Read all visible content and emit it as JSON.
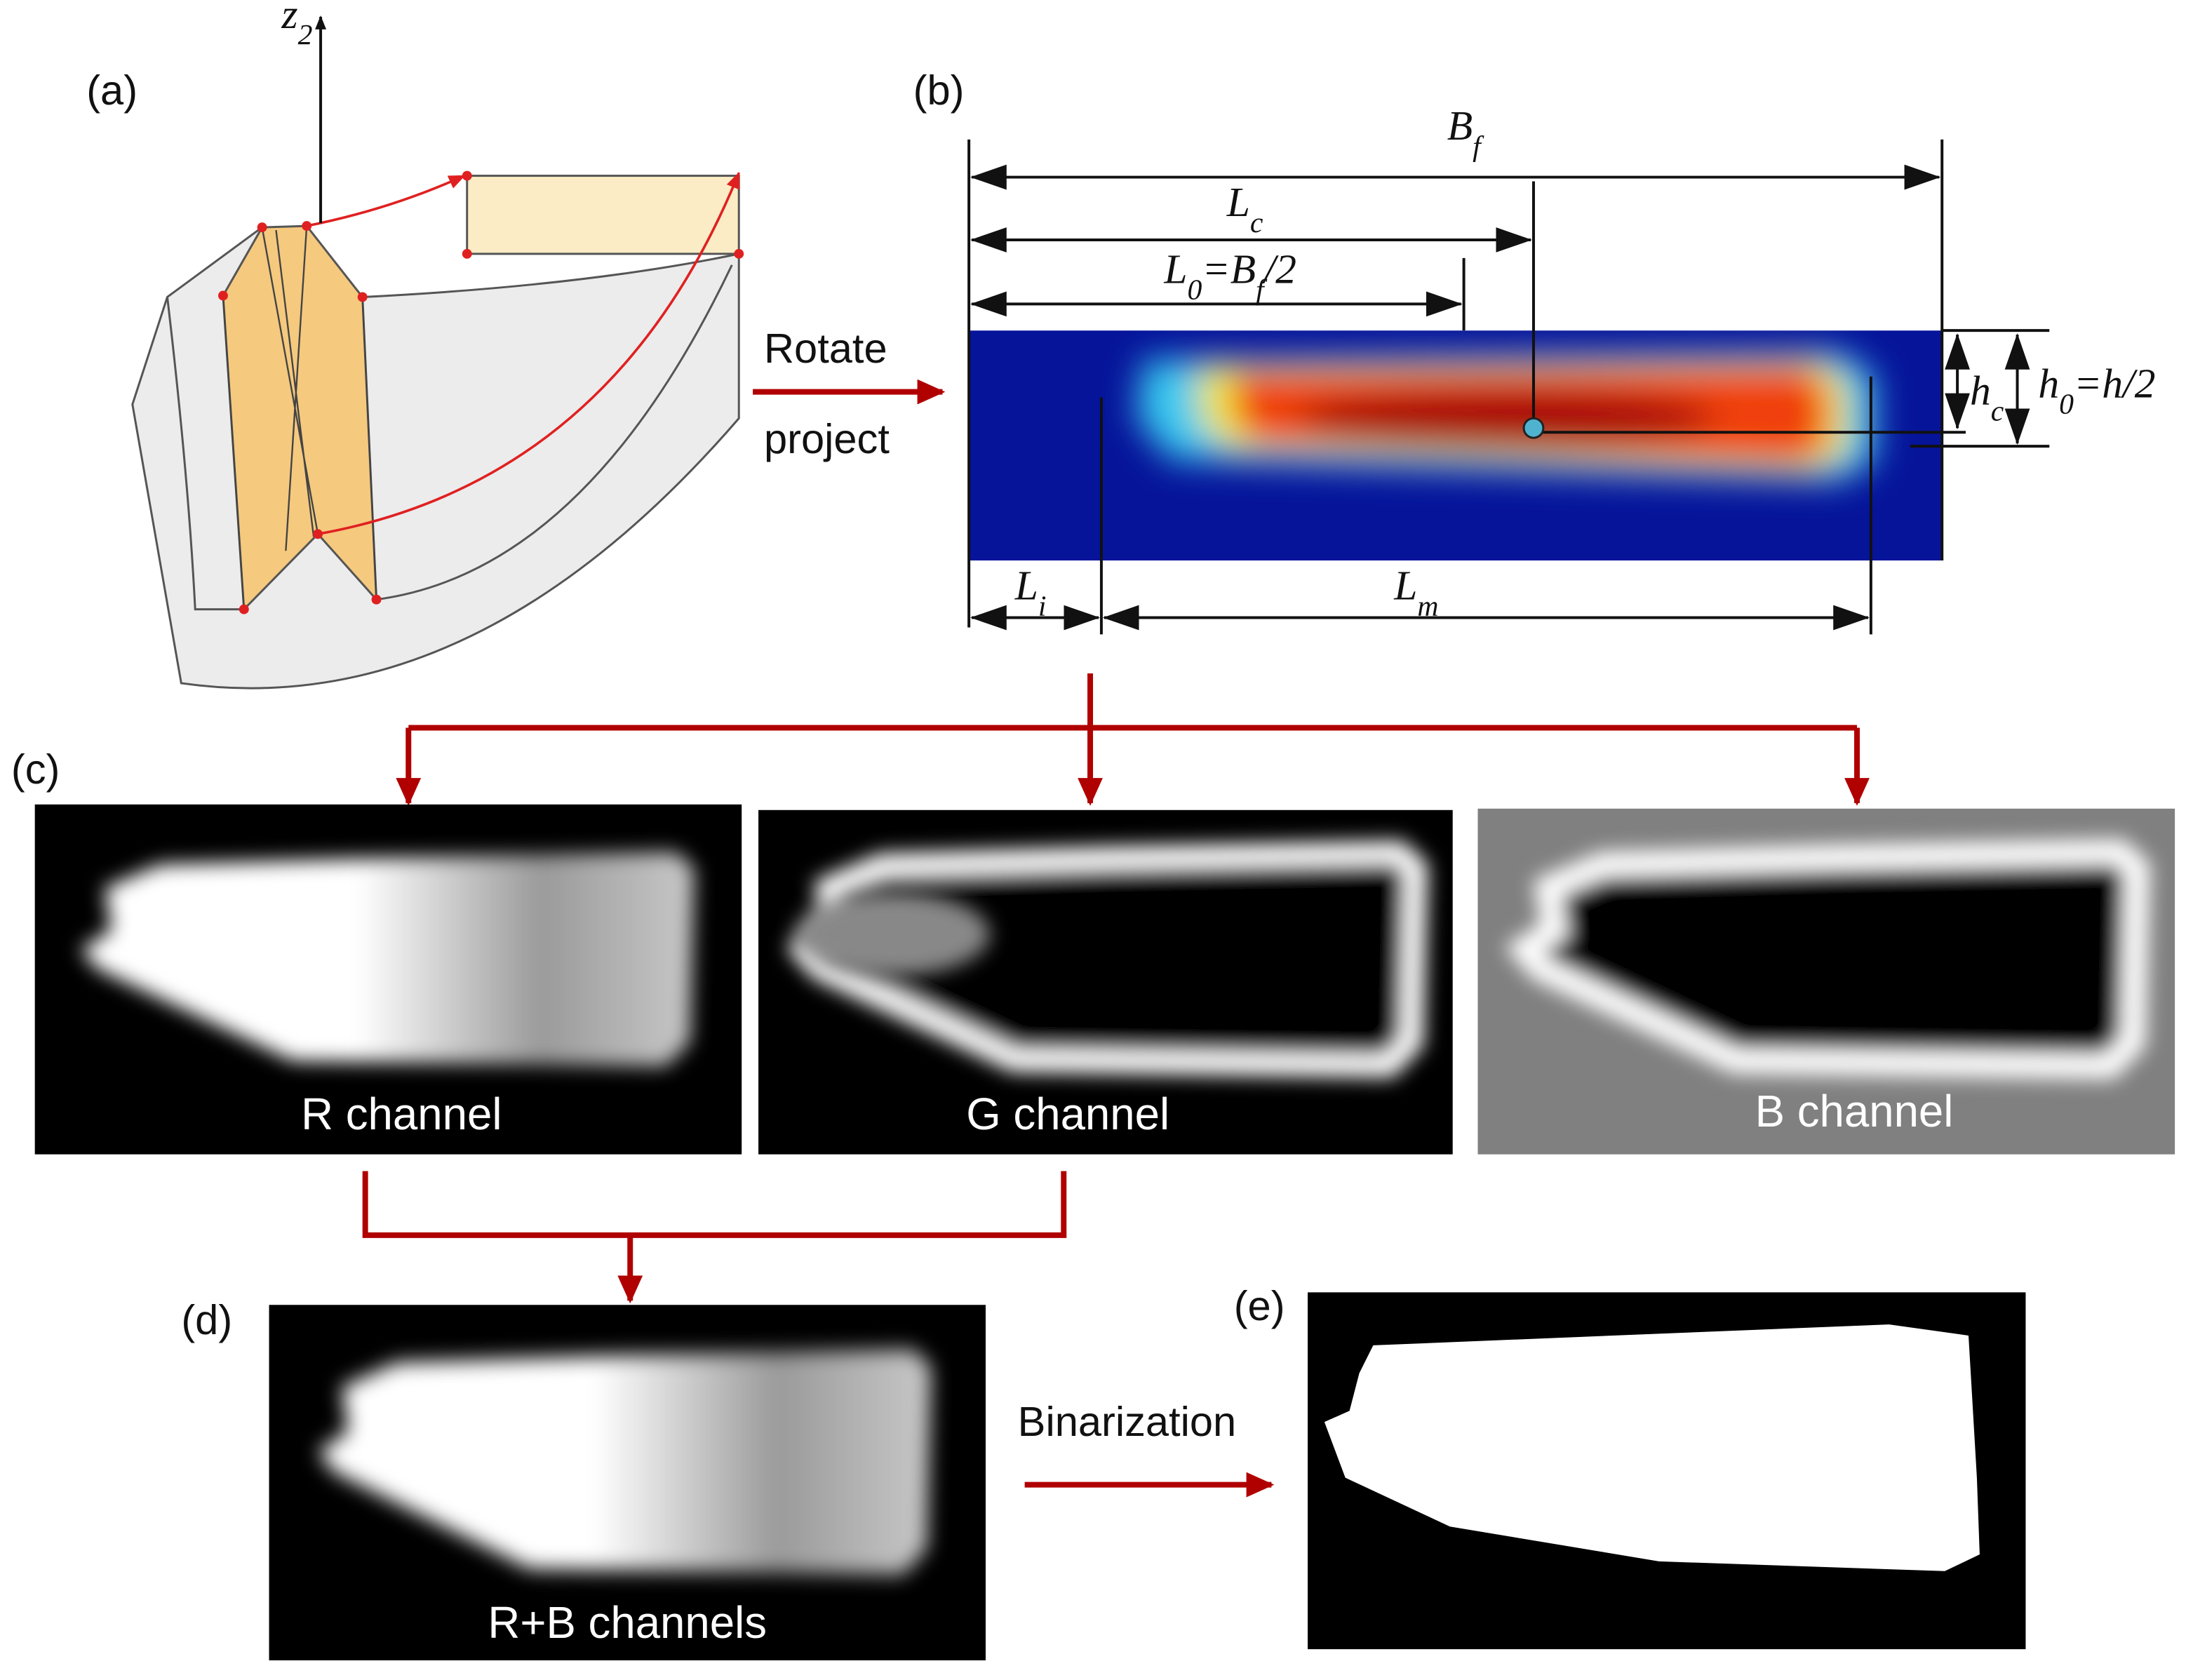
{
  "panels": {
    "a": "(a)",
    "b": "(b)",
    "c": "(c)",
    "d": "(d)",
    "e": "(e)"
  },
  "axis_label": [
    {
      "text": "z"
    },
    {
      "text": "2",
      "sub": true
    }
  ],
  "arrows": {
    "rotate": "Rotate",
    "project": "project",
    "binarization": "Binarization"
  },
  "dimensions": {
    "Bf": [
      {
        "text": "B"
      },
      {
        "text": "f",
        "sub": true
      }
    ],
    "Lc": [
      {
        "text": "L"
      },
      {
        "text": "c",
        "sub": true
      }
    ],
    "L0": [
      {
        "text": "L"
      },
      {
        "text": "0",
        "sub": true
      },
      {
        "text": "=B"
      },
      {
        "text": "f",
        "sub": true
      },
      {
        "text": "/2"
      }
    ],
    "hc": [
      {
        "text": "h"
      },
      {
        "text": "c",
        "sub": true
      }
    ],
    "h0": [
      {
        "text": "h"
      },
      {
        "text": "0",
        "sub": true
      },
      {
        "text": "=h/2"
      }
    ],
    "Li": [
      {
        "text": "L"
      },
      {
        "text": "i",
        "sub": true
      }
    ],
    "Lm": [
      {
        "text": "L"
      },
      {
        "text": "m",
        "sub": true
      }
    ]
  },
  "channels": {
    "r": "R channel",
    "g": "G channel",
    "b": "B channel",
    "rb": "R+B channels"
  }
}
